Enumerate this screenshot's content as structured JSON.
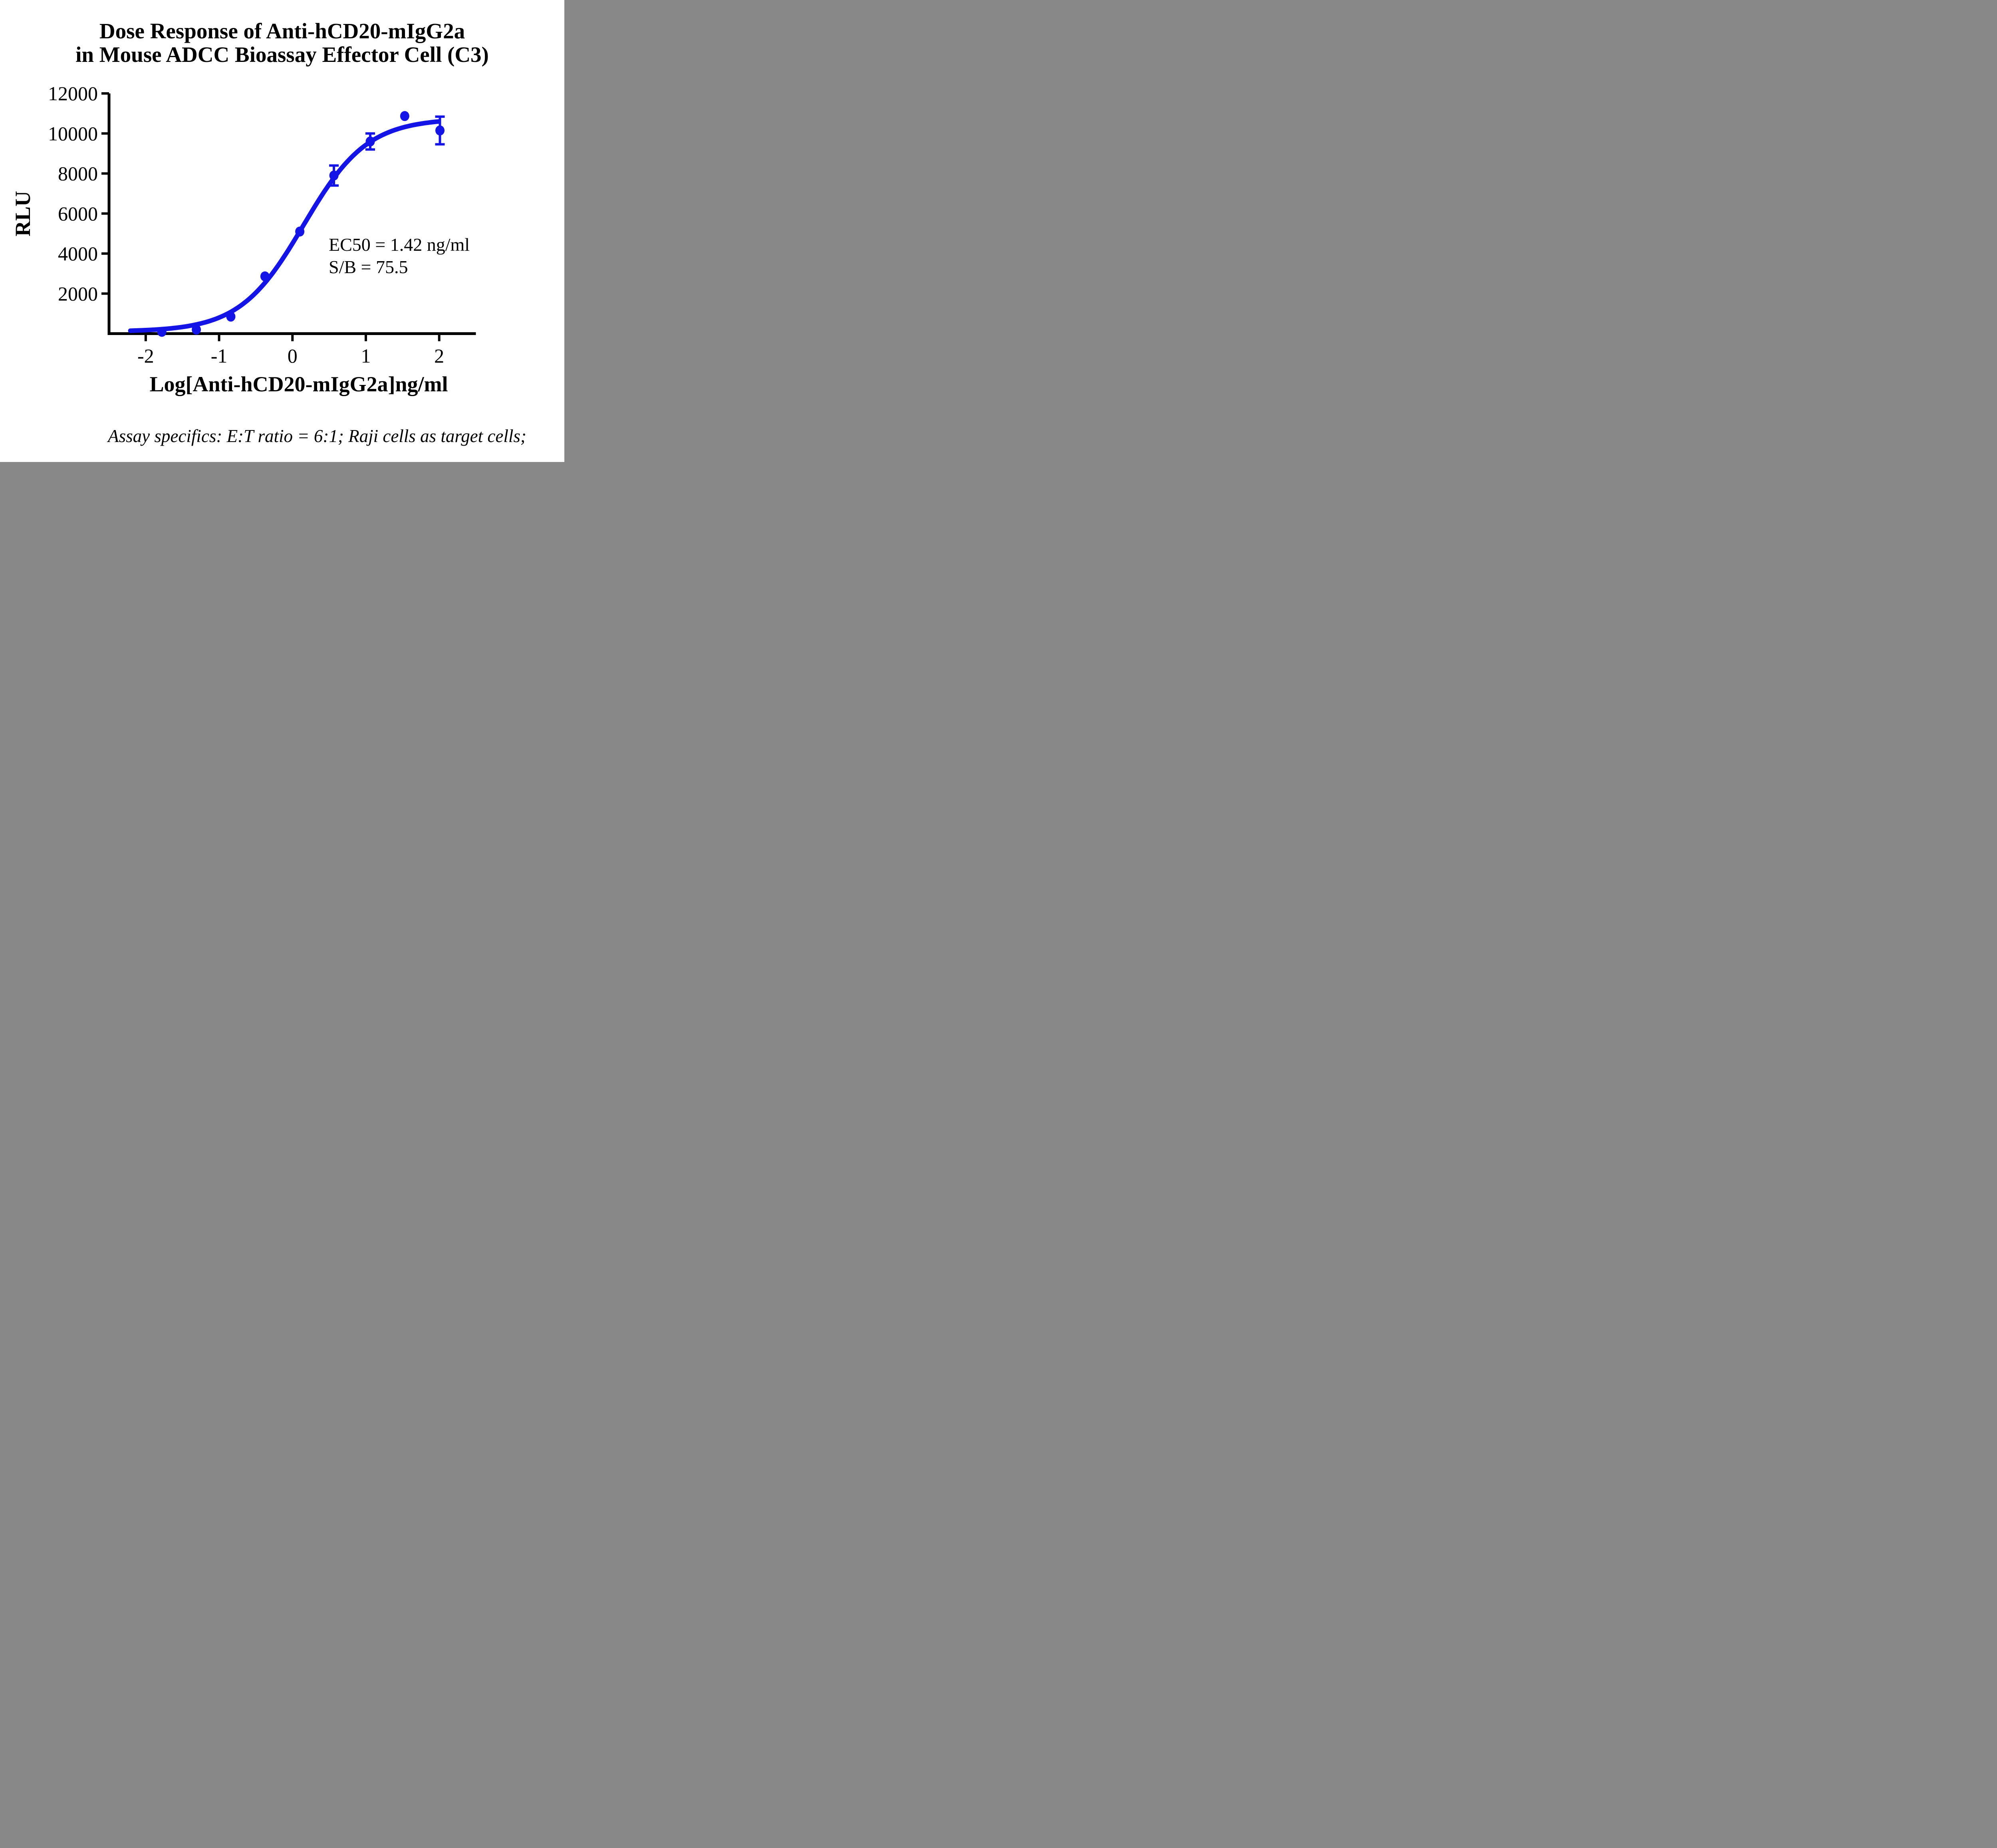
{
  "chart_data": {
    "type": "scatter",
    "title_lines": [
      "Dose Response of Anti-hCD20-mIgG2a",
      "in Mouse ADCC Bioassay Effector Cell (C3)"
    ],
    "xlabel": "Log[Anti-hCD20-mIgG2a]ng/ml",
    "ylabel": "RLU",
    "xlim": [
      -2.5,
      2.5
    ],
    "ylim": [
      0,
      12000
    ],
    "x_ticks": [
      "-2",
      "-1",
      "0",
      "1",
      "2"
    ],
    "x_tick_values": [
      -2,
      -1,
      0,
      1,
      2
    ],
    "y_ticks": [
      "2000",
      "4000",
      "6000",
      "8000",
      "10000",
      "12000"
    ],
    "y_tick_values": [
      2000,
      4000,
      6000,
      8000,
      10000,
      12000
    ],
    "grid": false,
    "legend": "none",
    "series": [
      {
        "name": "Anti-hCD20-mIgG2a",
        "marker": "circle",
        "color": "#1414e6",
        "points": [
          {
            "x": -1.78,
            "y": 90,
            "err": null
          },
          {
            "x": -1.31,
            "y": 200,
            "err": null
          },
          {
            "x": -0.84,
            "y": 850,
            "err": null
          },
          {
            "x": -0.375,
            "y": 2860,
            "err": null
          },
          {
            "x": 0.1,
            "y": 5100,
            "err": null
          },
          {
            "x": 0.565,
            "y": 7900,
            "err": 500
          },
          {
            "x": 1.06,
            "y": 9600,
            "err": 400
          },
          {
            "x": 1.53,
            "y": 10870,
            "err": null
          },
          {
            "x": 2.01,
            "y": 10150,
            "err": 690
          }
        ]
      }
    ],
    "fit_curve": {
      "model": "4PL-logistic",
      "bottom": 100,
      "top": 10750,
      "log_ec50": 0.152,
      "hill": 1.0,
      "x_start": -2.21,
      "x_end": 2.01
    },
    "annotations": [
      "EC50 = 1.42 ng/ml",
      "S/B = 75.5"
    ],
    "caption": "Assay specifics: E:T ratio = 6:1; Raji cells as target cells;",
    "colors": {
      "curve": "#1414e6",
      "axis": "#000000",
      "text": "#000000",
      "background": "#ffffff"
    }
  }
}
